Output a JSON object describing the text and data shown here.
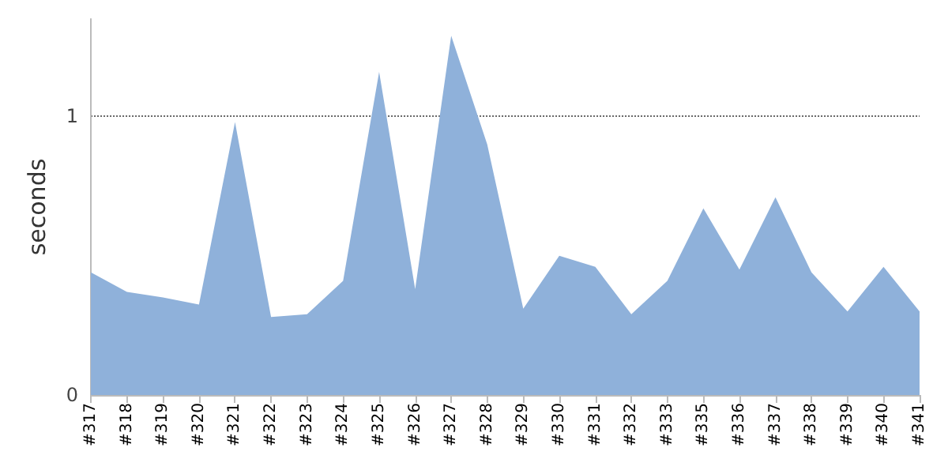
{
  "chart_data": {
    "type": "area",
    "ylabel": "seconds",
    "categories": [
      "#317",
      "#318",
      "#319",
      "#320",
      "#321",
      "#322",
      "#323",
      "#324",
      "#325",
      "#326",
      "#327",
      "#328",
      "#329",
      "#330",
      "#331",
      "#332",
      "#333",
      "#335",
      "#336",
      "#337",
      "#338",
      "#339",
      "#340",
      "#341"
    ],
    "series": [
      {
        "color": "#8fb1da",
        "values": [
          0.44,
          0.37,
          0.35,
          0.325,
          0.98,
          0.28,
          0.29,
          0.41,
          1.16,
          0.38,
          1.29,
          0.9,
          0.31,
          0.5,
          0.46,
          0.29,
          0.41,
          0.67,
          0.45,
          0.71,
          0.44,
          0.3,
          0.46,
          0.3
        ]
      }
    ],
    "ylim": [
      0,
      1.35
    ],
    "yticks": [
      0,
      1
    ],
    "grid": "y"
  }
}
